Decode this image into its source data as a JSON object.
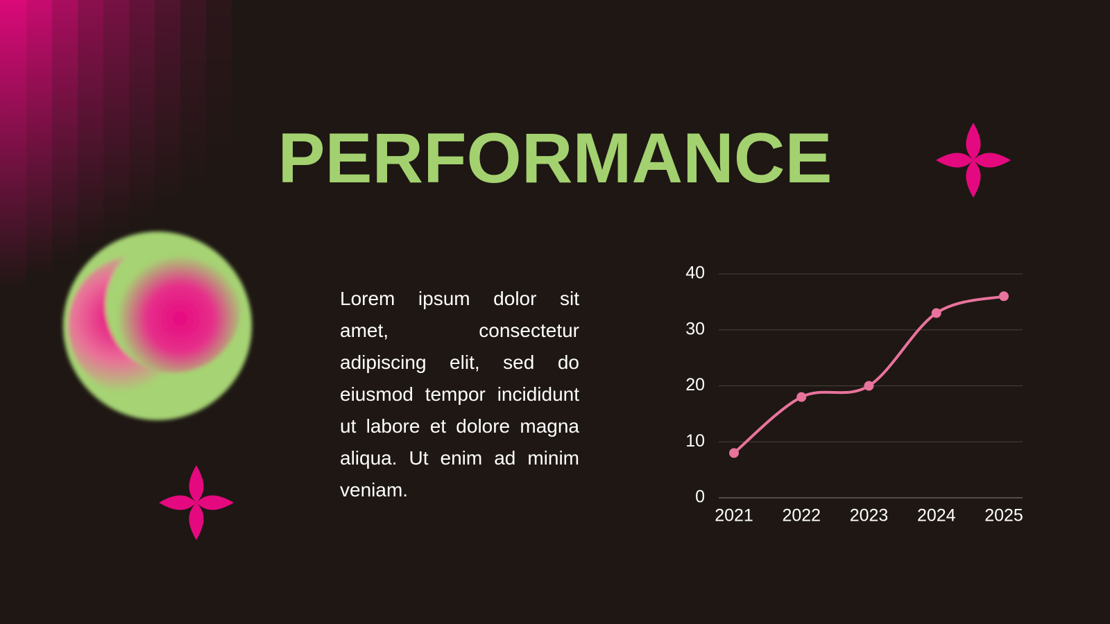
{
  "title": "PERFORMANCE",
  "body": "Lorem ipsum dolor sit amet, consectetur adipiscing elit, sed do eiusmod tempor incididunt ut labore et dolore magna aliqua. Ut enim ad minim veniam.",
  "chart_data": {
    "type": "line",
    "categories": [
      "2021",
      "2022",
      "2023",
      "2024",
      "2025"
    ],
    "values": [
      8,
      18,
      20,
      33,
      36
    ],
    "color": "#e8739c",
    "ylim": [
      0,
      40
    ],
    "yticks": [
      0,
      10,
      20,
      30,
      40
    ],
    "grid": true
  }
}
